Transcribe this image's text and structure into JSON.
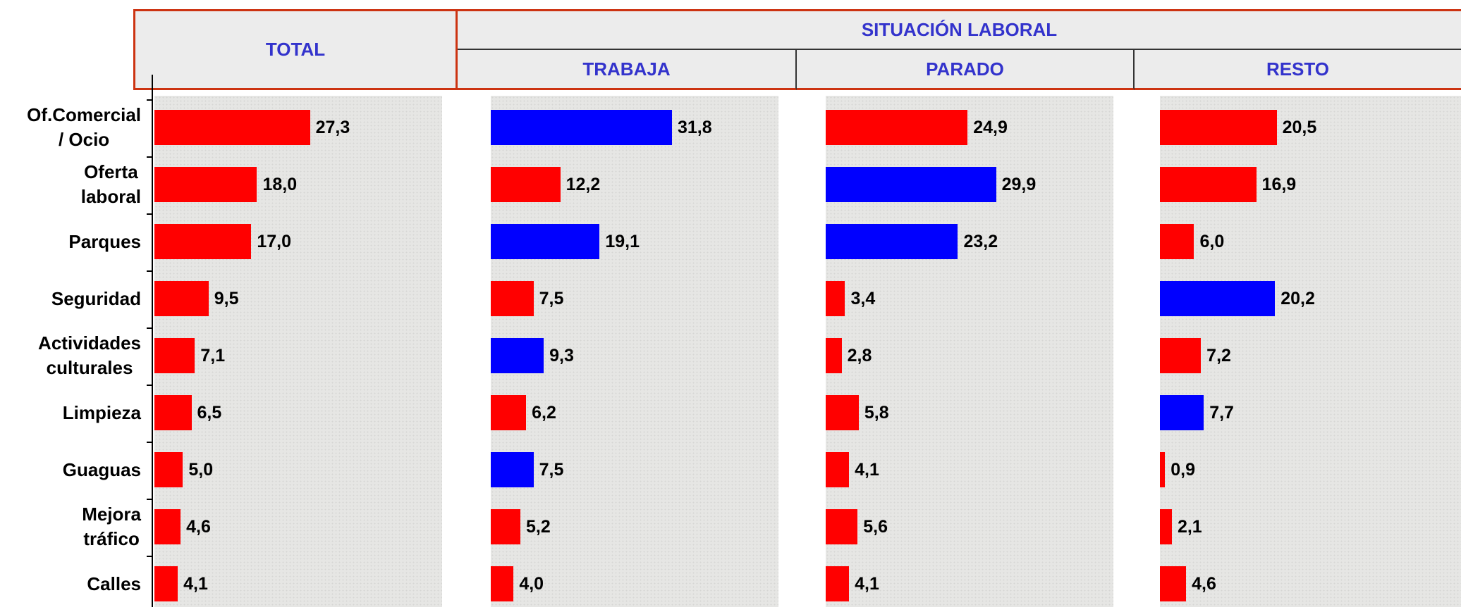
{
  "header": {
    "group": "SITUACIÓN LABORAL"
  },
  "chart_data": [
    {
      "type": "bar",
      "title": "TOTAL",
      "categories": [
        "Of.Comercial\n/ Ocio",
        "Oferta\nlaboral",
        "Parques",
        "Seguridad",
        "Actividades\nculturales",
        "Limpieza",
        "Guaguas",
        "Mejora\ntráfico",
        "Calles"
      ],
      "values": [
        27.3,
        18.0,
        17.0,
        9.5,
        7.1,
        6.5,
        5.0,
        4.6,
        4.1
      ],
      "value_labels": [
        "27,3",
        "18,0",
        "17,0",
        "9,5",
        "7,1",
        "6,5",
        "5,0",
        "4,6",
        "4,1"
      ],
      "colors": [
        "#ff0000",
        "#ff0000",
        "#ff0000",
        "#ff0000",
        "#ff0000",
        "#ff0000",
        "#ff0000",
        "#ff0000",
        "#ff0000"
      ],
      "xlim": [
        0,
        50
      ]
    },
    {
      "type": "bar",
      "title": "TRABAJA",
      "values": [
        31.8,
        12.2,
        19.1,
        7.5,
        9.3,
        6.2,
        7.5,
        5.2,
        4.0
      ],
      "value_labels": [
        "31,8",
        "12,2",
        "19,1",
        "7,5",
        "9,3",
        "6,2",
        "7,5",
        "5,2",
        "4,0"
      ],
      "colors": [
        "#0000ff",
        "#ff0000",
        "#0000ff",
        "#ff0000",
        "#0000ff",
        "#ff0000",
        "#0000ff",
        "#ff0000",
        "#ff0000"
      ],
      "xlim": [
        0,
        50
      ]
    },
    {
      "type": "bar",
      "title": "PARADO",
      "values": [
        24.9,
        29.9,
        23.2,
        3.4,
        2.8,
        5.8,
        4.1,
        5.6,
        4.1
      ],
      "value_labels": [
        "24,9",
        "29,9",
        "23,2",
        "3,4",
        "2,8",
        "5,8",
        "4,1",
        "5,6",
        "4,1"
      ],
      "colors": [
        "#ff0000",
        "#0000ff",
        "#0000ff",
        "#ff0000",
        "#ff0000",
        "#ff0000",
        "#ff0000",
        "#ff0000",
        "#ff0000"
      ],
      "xlim": [
        0,
        50
      ]
    },
    {
      "type": "bar",
      "title": "RESTO",
      "values": [
        20.5,
        16.9,
        6.0,
        20.2,
        7.2,
        7.7,
        0.9,
        2.1,
        4.6
      ],
      "value_labels": [
        "20,5",
        "16,9",
        "6,0",
        "20,2",
        "7,2",
        "7,7",
        "0,9",
        "2,1",
        "4,6"
      ],
      "colors": [
        "#ff0000",
        "#ff0000",
        "#ff0000",
        "#0000ff",
        "#ff0000",
        "#0000ff",
        "#ff0000",
        "#ff0000",
        "#ff0000"
      ],
      "xlim": [
        0,
        50
      ]
    }
  ]
}
